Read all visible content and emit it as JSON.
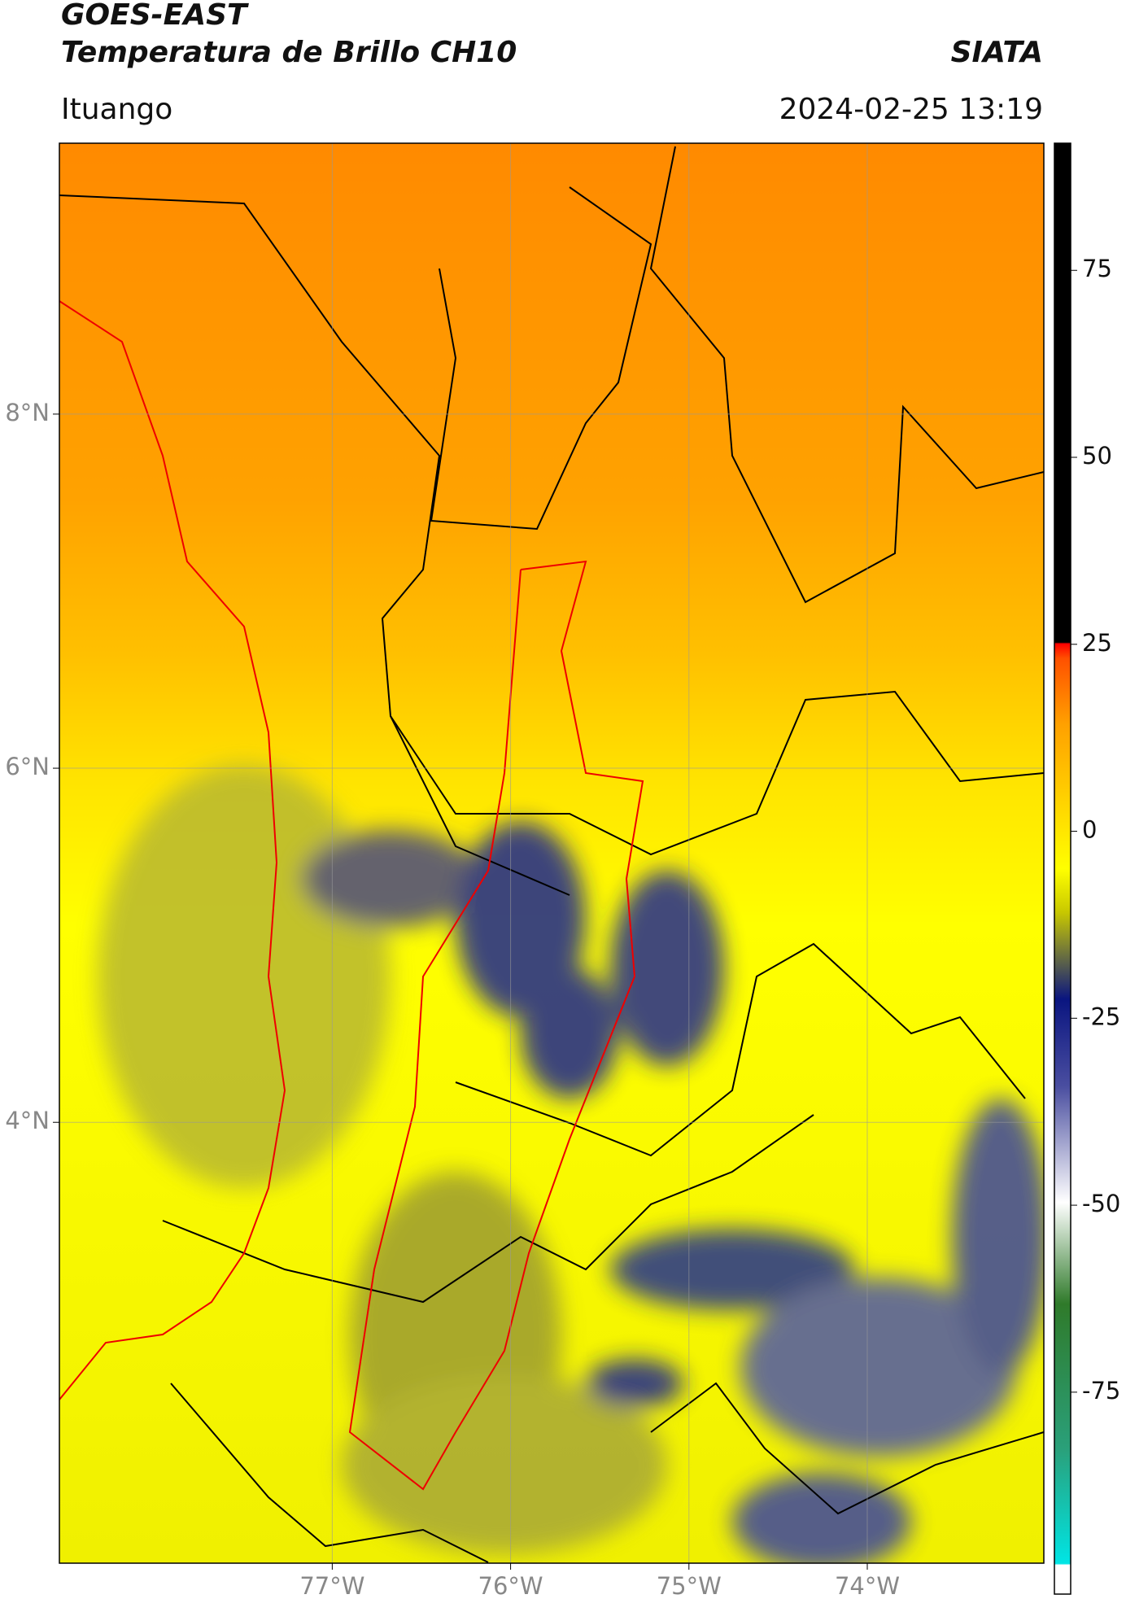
{
  "header": {
    "title": "GOES-EAST",
    "subtitle": "Temperatura de Brillo CH10",
    "brand": "SIATA",
    "location": "Ituango",
    "datetime": "2024-02-25 13:19"
  },
  "map": {
    "lonlim": [
      -78.53,
      -73.01
    ],
    "latlim": [
      1.51,
      9.53
    ],
    "xticks": [
      {
        "value": -77,
        "label": "77°W"
      },
      {
        "value": -76,
        "label": "76°W"
      },
      {
        "value": -75,
        "label": "75°W"
      },
      {
        "value": -74,
        "label": "74°W"
      }
    ],
    "yticks": [
      {
        "value": 8,
        "label": "8°N"
      },
      {
        "value": 6,
        "label": "6°N"
      },
      {
        "value": 4,
        "label": "4°N"
      }
    ]
  },
  "colorbar": {
    "lim": [
      -102,
      92
    ],
    "ticks": [
      75,
      50,
      25,
      0,
      -25,
      -50,
      -75
    ]
  }
}
